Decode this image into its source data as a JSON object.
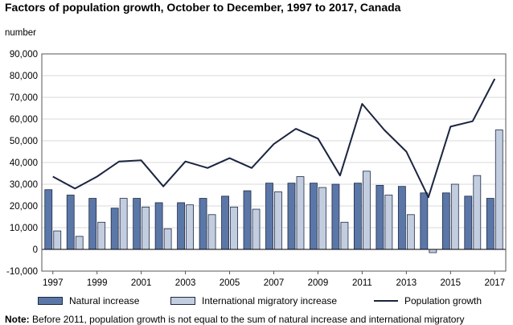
{
  "chart_data": {
    "type": "bar",
    "title": "Factors of population growth, October to December, 1997 to 2017, Canada",
    "ylabel": "number",
    "xlabel": "",
    "ylim": [
      -10000,
      90000
    ],
    "yticks": [
      -10000,
      0,
      10000,
      20000,
      30000,
      40000,
      50000,
      60000,
      70000,
      80000,
      90000
    ],
    "ytick_labels": [
      "-10,000",
      "0",
      "10,000",
      "20,000",
      "30,000",
      "40,000",
      "50,000",
      "60,000",
      "70,000",
      "80,000",
      "90,000"
    ],
    "categories": [
      "1997",
      "1998",
      "1999",
      "2000",
      "2001",
      "2002",
      "2003",
      "2004",
      "2005",
      "2006",
      "2007",
      "2008",
      "2009",
      "2010",
      "2011",
      "2012",
      "2013",
      "2014",
      "2015",
      "2016",
      "2017"
    ],
    "xtick_labels": [
      "1997",
      "1999",
      "2001",
      "2003",
      "2005",
      "2007",
      "2009",
      "2011",
      "2013",
      "2015",
      "2017"
    ],
    "grid": "horizontal",
    "legend_position": "bottom",
    "series": [
      {
        "name": "Natural increase",
        "kind": "bar",
        "color": "#5b77a8",
        "values": [
          27500,
          25000,
          23500,
          19000,
          23500,
          21500,
          21500,
          23500,
          24500,
          27000,
          30500,
          30500,
          30500,
          30000,
          30500,
          29500,
          29000,
          26000,
          26000,
          24500,
          23500
        ]
      },
      {
        "name": "International migratory increase",
        "kind": "bar",
        "color": "#c3cde0",
        "values": [
          8500,
          6000,
          12500,
          23500,
          19500,
          9500,
          20500,
          16000,
          19500,
          18500,
          26500,
          33500,
          28500,
          12500,
          36000,
          25000,
          16000,
          -1500,
          30000,
          34000,
          55000
        ]
      },
      {
        "name": "Population growth",
        "kind": "line",
        "color": "#1b2440",
        "values": [
          33500,
          28000,
          33500,
          40500,
          41000,
          29000,
          40500,
          37500,
          42000,
          37500,
          48500,
          55500,
          51000,
          34000,
          67000,
          55000,
          45000,
          24000,
          56500,
          59000,
          78500
        ]
      }
    ]
  },
  "note": {
    "label": "Note:",
    "text": "Before 2011, population growth is not equal to the sum of natural increase and international migratory"
  }
}
